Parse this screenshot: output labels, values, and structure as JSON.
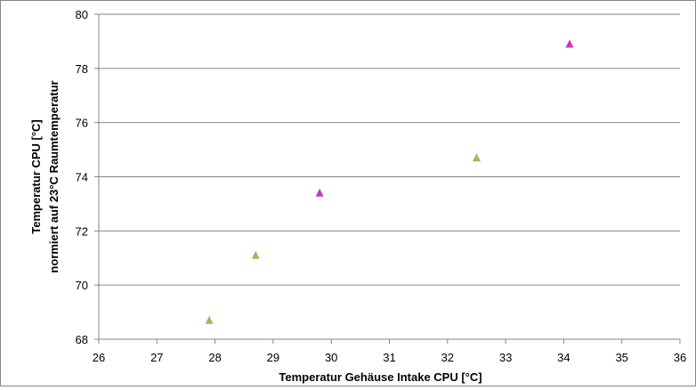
{
  "chart_data": {
    "type": "scatter",
    "xlabel": "Temperatur Gehäuse Intake CPU [°C]",
    "ylabel_line1": "Temperatur CPU [°C]",
    "ylabel_line2": "normiert auf 23°C Raumtemperatur",
    "xlim": [
      26,
      36
    ],
    "ylim": [
      68,
      80
    ],
    "x_ticks": [
      "26",
      "27",
      "28",
      "29",
      "30",
      "31",
      "32",
      "33",
      "34",
      "35",
      "36"
    ],
    "y_ticks": [
      "68",
      "70",
      "72",
      "74",
      "76",
      "78",
      "80"
    ],
    "grid": "horizontal",
    "legend": "none",
    "marker": "triangle",
    "series": [
      {
        "color": "#9bbb59",
        "points": [
          {
            "x": 27.9,
            "y": 68.7
          },
          {
            "x": 28.7,
            "y": 71.1
          },
          {
            "x": 32.5,
            "y": 74.7
          }
        ]
      },
      {
        "color": "#cc33cc",
        "points": [
          {
            "x": 29.8,
            "y": 73.4
          },
          {
            "x": 34.1,
            "y": 78.9
          }
        ]
      }
    ]
  }
}
